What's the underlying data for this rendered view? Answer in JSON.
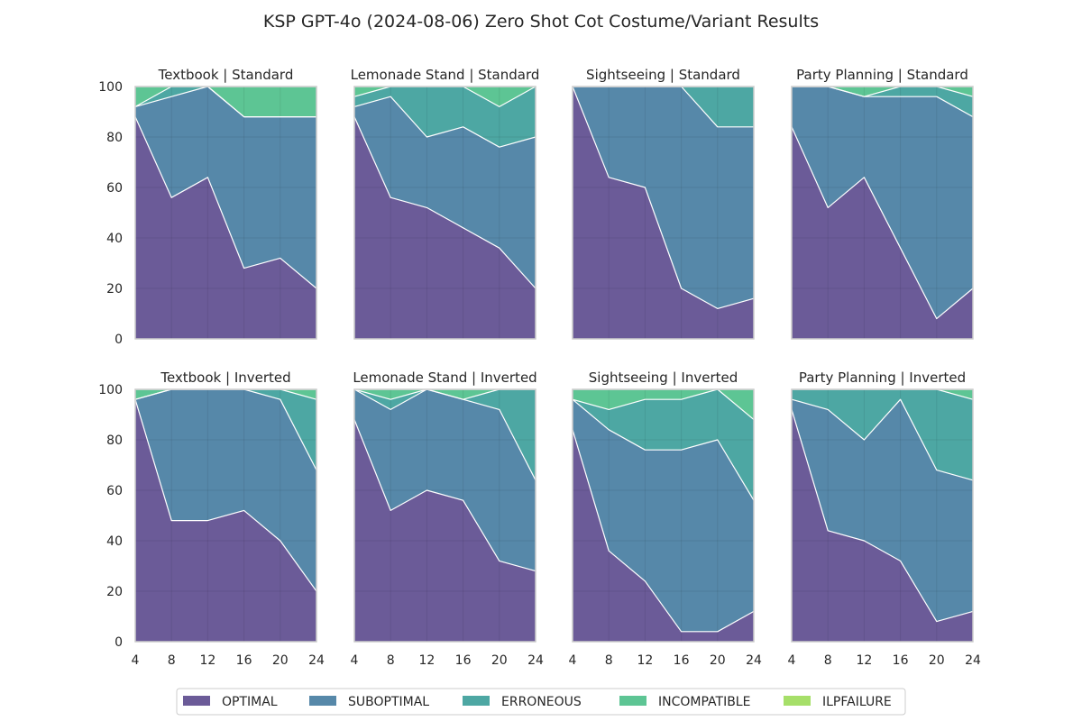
{
  "title": "KSP GPT-4o (2024-08-06) Zero Shot Cot Costume/Variant Results",
  "legend": {
    "placement": "bottom-center",
    "entries": [
      {
        "label": "OPTIMAL",
        "color": "#46327e"
      },
      {
        "label": "SUBOPTIMAL",
        "color": "#2c6a94"
      },
      {
        "label": "ERRONEOUS",
        "color": "#21918c"
      },
      {
        "label": "INCOMPATIBLE",
        "color": "#35b779"
      },
      {
        "label": "ILPFAILURE",
        "color": "#90d743"
      }
    ]
  },
  "chart_data": {
    "type": "area",
    "stacked": true,
    "grid": true,
    "x": [
      4,
      8,
      12,
      16,
      20,
      24
    ],
    "xticks": [
      4,
      8,
      12,
      16,
      20,
      24
    ],
    "ylim": [
      0,
      100
    ],
    "yticks": [
      0,
      20,
      40,
      60,
      80,
      100
    ],
    "panels": [
      {
        "title": "Textbook | Standard",
        "series": [
          {
            "name": "OPTIMAL",
            "values": [
              88,
              56,
              64,
              28,
              32,
              20
            ]
          },
          {
            "name": "SUBOPTIMAL",
            "values": [
              4,
              40,
              36,
              60,
              56,
              68
            ]
          },
          {
            "name": "ERRONEOUS",
            "values": [
              0,
              4,
              0,
              0,
              0,
              0
            ]
          },
          {
            "name": "INCOMPATIBLE",
            "values": [
              8,
              0,
              0,
              12,
              12,
              12
            ]
          },
          {
            "name": "ILPFAILURE",
            "values": [
              0,
              0,
              0,
              0,
              0,
              0
            ]
          }
        ]
      },
      {
        "title": "Lemonade Stand | Standard",
        "series": [
          {
            "name": "OPTIMAL",
            "values": [
              88,
              56,
              52,
              44,
              36,
              20
            ]
          },
          {
            "name": "SUBOPTIMAL",
            "values": [
              4,
              40,
              28,
              40,
              40,
              60
            ]
          },
          {
            "name": "ERRONEOUS",
            "values": [
              4,
              4,
              20,
              16,
              16,
              20
            ]
          },
          {
            "name": "INCOMPATIBLE",
            "values": [
              4,
              0,
              0,
              0,
              8,
              0
            ]
          },
          {
            "name": "ILPFAILURE",
            "values": [
              0,
              0,
              0,
              0,
              0,
              0
            ]
          }
        ]
      },
      {
        "title": "Sightseeing | Standard",
        "series": [
          {
            "name": "OPTIMAL",
            "values": [
              100,
              64,
              60,
              20,
              12,
              16
            ]
          },
          {
            "name": "SUBOPTIMAL",
            "values": [
              0,
              36,
              40,
              80,
              72,
              68
            ]
          },
          {
            "name": "ERRONEOUS",
            "values": [
              0,
              0,
              0,
              0,
              16,
              16
            ]
          },
          {
            "name": "INCOMPATIBLE",
            "values": [
              0,
              0,
              0,
              0,
              0,
              0
            ]
          },
          {
            "name": "ILPFAILURE",
            "values": [
              0,
              0,
              0,
              0,
              0,
              0
            ]
          }
        ]
      },
      {
        "title": "Party Planning | Standard",
        "series": [
          {
            "name": "OPTIMAL",
            "values": [
              84,
              52,
              64,
              36,
              8,
              20
            ]
          },
          {
            "name": "SUBOPTIMAL",
            "values": [
              16,
              48,
              32,
              60,
              88,
              68
            ]
          },
          {
            "name": "ERRONEOUS",
            "values": [
              0,
              0,
              0,
              4,
              4,
              8
            ]
          },
          {
            "name": "INCOMPATIBLE",
            "values": [
              0,
              0,
              4,
              0,
              0,
              4
            ]
          },
          {
            "name": "ILPFAILURE",
            "values": [
              0,
              0,
              0,
              0,
              0,
              0
            ]
          }
        ]
      },
      {
        "title": "Textbook | Inverted",
        "series": [
          {
            "name": "OPTIMAL",
            "values": [
              96,
              48,
              48,
              52,
              40,
              20
            ]
          },
          {
            "name": "SUBOPTIMAL",
            "values": [
              0,
              52,
              52,
              48,
              56,
              48
            ]
          },
          {
            "name": "ERRONEOUS",
            "values": [
              0,
              0,
              0,
              0,
              4,
              28
            ]
          },
          {
            "name": "INCOMPATIBLE",
            "values": [
              4,
              0,
              0,
              0,
              0,
              4
            ]
          },
          {
            "name": "ILPFAILURE",
            "values": [
              0,
              0,
              0,
              0,
              0,
              0
            ]
          }
        ]
      },
      {
        "title": "Lemonade Stand | Inverted",
        "series": [
          {
            "name": "OPTIMAL",
            "values": [
              88,
              52,
              60,
              56,
              32,
              28
            ]
          },
          {
            "name": "SUBOPTIMAL",
            "values": [
              12,
              40,
              40,
              40,
              60,
              36
            ]
          },
          {
            "name": "ERRONEOUS",
            "values": [
              0,
              4,
              0,
              0,
              8,
              36
            ]
          },
          {
            "name": "INCOMPATIBLE",
            "values": [
              0,
              4,
              0,
              4,
              0,
              0
            ]
          },
          {
            "name": "ILPFAILURE",
            "values": [
              0,
              0,
              0,
              0,
              0,
              0
            ]
          }
        ]
      },
      {
        "title": "Sightseeing | Inverted",
        "series": [
          {
            "name": "OPTIMAL",
            "values": [
              84,
              36,
              24,
              4,
              4,
              12
            ]
          },
          {
            "name": "SUBOPTIMAL",
            "values": [
              12,
              48,
              52,
              72,
              76,
              44
            ]
          },
          {
            "name": "ERRONEOUS",
            "values": [
              0,
              8,
              20,
              20,
              20,
              32
            ]
          },
          {
            "name": "INCOMPATIBLE",
            "values": [
              4,
              8,
              4,
              4,
              0,
              12
            ]
          },
          {
            "name": "ILPFAILURE",
            "values": [
              0,
              0,
              0,
              0,
              0,
              0
            ]
          }
        ]
      },
      {
        "title": "Party Planning | Inverted",
        "series": [
          {
            "name": "OPTIMAL",
            "values": [
              92,
              44,
              40,
              32,
              8,
              12
            ]
          },
          {
            "name": "SUBOPTIMAL",
            "values": [
              4,
              48,
              40,
              64,
              60,
              52
            ]
          },
          {
            "name": "ERRONEOUS",
            "values": [
              4,
              8,
              20,
              4,
              32,
              32
            ]
          },
          {
            "name": "INCOMPATIBLE",
            "values": [
              0,
              0,
              0,
              0,
              0,
              4
            ]
          },
          {
            "name": "ILPFAILURE",
            "values": [
              0,
              0,
              0,
              0,
              0,
              0
            ]
          }
        ]
      }
    ]
  }
}
